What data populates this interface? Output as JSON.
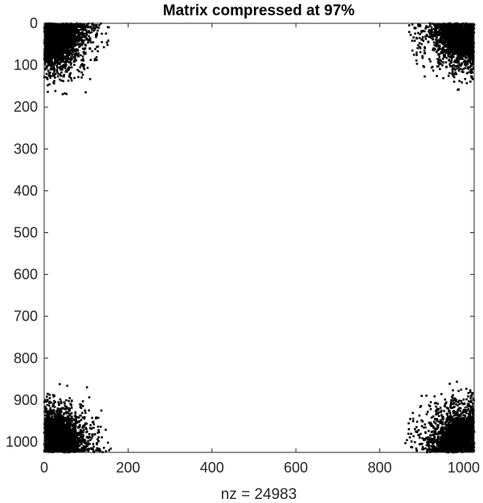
{
  "chart_data": {
    "type": "scatter",
    "title": "Matrix compressed at 97%",
    "xlabel": "nz = 24983",
    "ylabel": "",
    "xlim": [
      0,
      1025
    ],
    "ylim": [
      1025,
      0
    ],
    "y_reversed": true,
    "xticks": [
      0,
      200,
      400,
      600,
      800,
      1000
    ],
    "yticks": [
      0,
      100,
      200,
      300,
      400,
      500,
      600,
      700,
      800,
      900,
      1000
    ],
    "grid": false,
    "legend": "none",
    "marker_color": "#000000",
    "nz": 24983,
    "clusters": [
      {
        "name": "top-left",
        "corner": [
          0,
          0
        ],
        "extent_x": 160,
        "extent_y": 175
      },
      {
        "name": "top-right",
        "corner": [
          1025,
          0
        ],
        "extent_x": 165,
        "extent_y": 160
      },
      {
        "name": "bottom-left",
        "corner": [
          0,
          1025
        ],
        "extent_x": 165,
        "extent_y": 165
      },
      {
        "name": "bottom-right",
        "corner": [
          1025,
          1025
        ],
        "extent_x": 175,
        "extent_y": 170
      }
    ]
  }
}
